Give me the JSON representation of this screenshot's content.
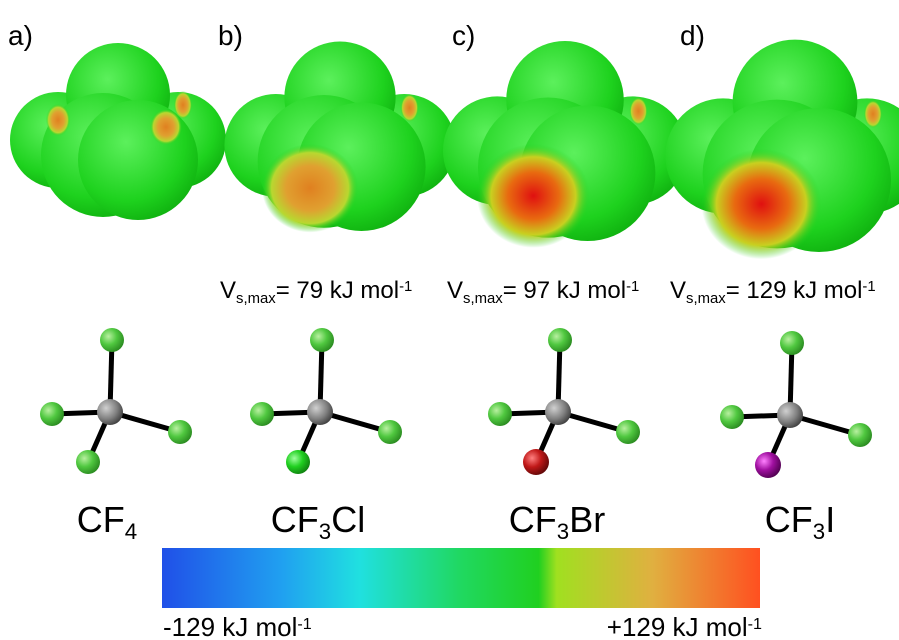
{
  "panels": [
    {
      "label": "a)",
      "molecule": {
        "prefix": "CF",
        "subscript": "4"
      }
    },
    {
      "label": "b)",
      "vsmax": {
        "symbol": "V",
        "subscript": "s,max",
        "text": "= 79 kJ mol",
        "superscript": "-1"
      },
      "molecule": {
        "prefix": "CF",
        "subscript": "3",
        "suffix": "Cl"
      }
    },
    {
      "label": "c)",
      "vsmax": {
        "symbol": "V",
        "subscript": "s,max",
        "text": "= 97 kJ mol",
        "superscript": "-1"
      },
      "molecule": {
        "prefix": "CF",
        "subscript": "3",
        "suffix": "Br"
      }
    },
    {
      "label": "d)",
      "vsmax": {
        "symbol": "V",
        "subscript": "s,max",
        "text": "= 129 kJ mol",
        "superscript": "-1"
      },
      "molecule": {
        "prefix": "CF",
        "subscript": "3",
        "suffix": "I"
      }
    }
  ],
  "colorbar": {
    "min_label": {
      "text": "-129 kJ mol",
      "superscript": "-1"
    },
    "max_label": {
      "text": "+129 kJ mol",
      "superscript": "-1"
    }
  }
}
